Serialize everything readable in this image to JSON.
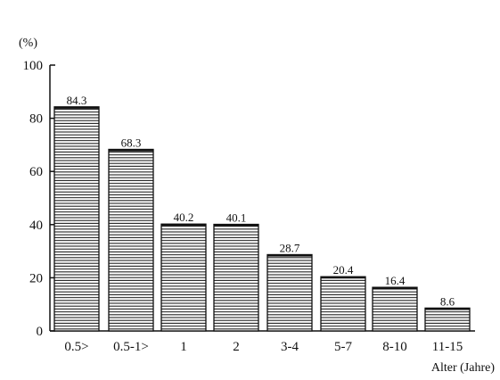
{
  "chart_data": {
    "type": "bar",
    "title": "",
    "xlabel": "Alter (Jahre)",
    "ylabel": "(%)",
    "ylim": [
      0,
      100
    ],
    "yticks": [
      0,
      20,
      40,
      60,
      80,
      100
    ],
    "grid": false,
    "legend": "none",
    "categories": [
      "0.5>",
      "0.5-1>",
      "1",
      "2",
      "3-4",
      "5-7",
      "8-10",
      "11-15"
    ],
    "values": [
      84.3,
      68.3,
      40.2,
      40.1,
      28.7,
      20.4,
      16.4,
      8.6
    ],
    "value_labels": [
      "84.3",
      "68.3",
      "40.2",
      "40.1",
      "28.7",
      "20.4",
      "16.4",
      "8.6"
    ],
    "bar_fill": "horizontal-hatch",
    "colors": {
      "ink": "#111111",
      "background": "#ffffff"
    }
  }
}
